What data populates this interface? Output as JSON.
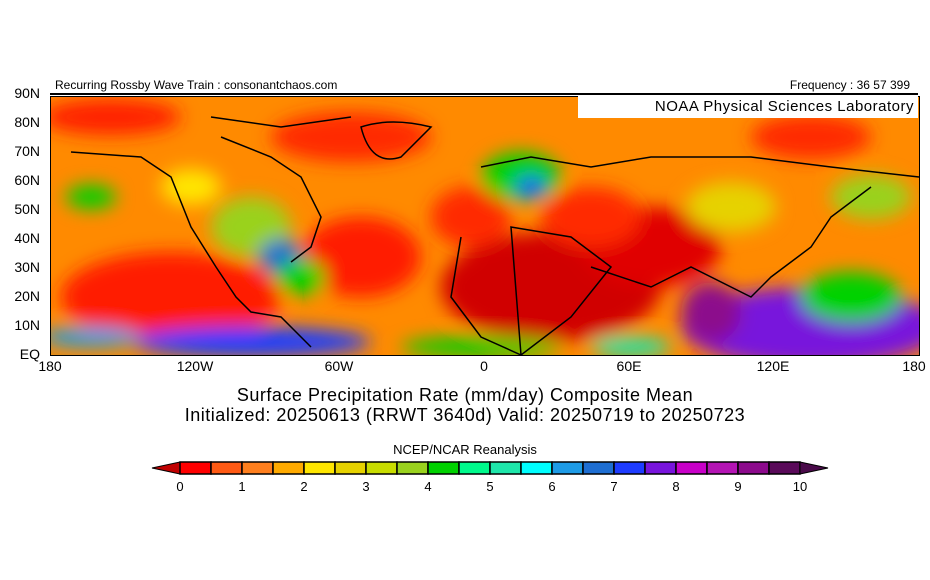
{
  "header": {
    "left": "Recurring Rossby Wave Train : consonantchaos.com",
    "right": "Frequency : 36 57 399",
    "watermark": "NOAA Physical Sciences Laboratory"
  },
  "map": {
    "lat_labels": [
      "90N",
      "80N",
      "70N",
      "60N",
      "50N",
      "40N",
      "30N",
      "20N",
      "10N",
      "EQ"
    ],
    "lon_labels": [
      "180",
      "120W",
      "60W",
      "0",
      "60E",
      "120E",
      "180"
    ]
  },
  "title": {
    "line1": "Surface Precipitation Rate (mm/day) Composite Mean",
    "line2": "Initialized: 20250613 (RRWT 3640d) Valid: 20250719 to 20250723"
  },
  "colorbar": {
    "source": "NCEP/NCAR Reanalysis",
    "labels": [
      "0",
      "1",
      "2",
      "3",
      "4",
      "5",
      "6",
      "7",
      "8",
      "9",
      "10"
    ],
    "units": "mm/day",
    "under_color": "#c00000",
    "over_color": "#4a0a4a",
    "colors": [
      "#ff0000",
      "#ff5a14",
      "#ff7f1e",
      "#ffaa00",
      "#ffe600",
      "#e6d200",
      "#c8dc00",
      "#9ad21e",
      "#00d200",
      "#00fa8c",
      "#1ee6aa",
      "#00ffff",
      "#1e9be6",
      "#1e6ed2",
      "#1e3cff",
      "#7814dc",
      "#c800c8",
      "#b414b4",
      "#8c0a8c",
      "#5a0a5a"
    ]
  }
}
